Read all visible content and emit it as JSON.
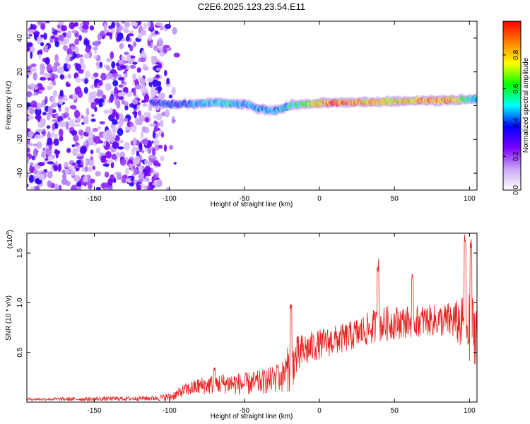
{
  "page": {
    "title": "C2E6.2025.123.23.54.E11"
  },
  "chart_data": [
    {
      "type": "heatmap",
      "title": "C2E6.2025.123.23.54.E11",
      "xlabel": "Height of straight line (km)",
      "ylabel": "Frequency (Hz)",
      "xlim": [
        -195,
        105
      ],
      "ylim": [
        -50,
        50
      ],
      "x_ticks": [
        -150,
        -100,
        -50,
        0,
        50,
        100
      ],
      "y_ticks": [
        -40,
        -20,
        0,
        20,
        40
      ],
      "colorbar": {
        "label": "Normalized spectral amplitude",
        "range": [
          0,
          1
        ],
        "ticks": [
          0.0,
          0.2,
          0.4,
          0.6,
          0.8
        ],
        "stops": [
          "#ffffff",
          "#c9a6f4",
          "#7a00ff",
          "#0000ff",
          "#00ffff",
          "#00ff00",
          "#ffff00",
          "#ff8000",
          "#ff0000"
        ]
      },
      "ridge": {
        "x": [
          -112,
          -100,
          -90,
          -80,
          -70,
          -60,
          -50,
          -40,
          -30,
          -20,
          -10,
          0,
          10,
          20,
          30,
          40,
          50,
          60,
          70,
          80,
          90,
          100,
          105
        ],
        "frequency": [
          2,
          1,
          1,
          1,
          2,
          1,
          1,
          -2,
          -3,
          0,
          1,
          1.5,
          2,
          2,
          2,
          2,
          2.5,
          3,
          3,
          3,
          3.5,
          4,
          4
        ],
        "amplitude": [
          0.35,
          0.4,
          0.4,
          0.45,
          0.5,
          0.5,
          0.45,
          0.45,
          0.45,
          0.5,
          0.6,
          0.75,
          0.9,
          0.9,
          0.8,
          0.75,
          0.75,
          0.8,
          0.85,
          0.85,
          0.8,
          0.55,
          0.5
        ]
      },
      "noise_region_end": -105
    },
    {
      "type": "line",
      "xlabel": "Height of straight line (km)",
      "ylabel": "SNR (10 * v/v)",
      "y_multiplier": "(x10",
      "y_multiplier_exp": "4",
      "y_multiplier_close": ")",
      "xlim": [
        -195,
        105
      ],
      "ylim": [
        0,
        17000
      ],
      "x_ticks": [
        -150,
        -100,
        -50,
        0,
        50,
        100
      ],
      "y_ticks": [
        0.5,
        1.0,
        1.5
      ],
      "y_tick_scale": 10000,
      "color": "#e8201e",
      "trend": {
        "x": [
          -195,
          -160,
          -130,
          -110,
          -100,
          -95,
          -90,
          -80,
          -70,
          -60,
          -50,
          -40,
          -30,
          -25,
          -20,
          -15,
          -10,
          0,
          10,
          20,
          30,
          40,
          50,
          60,
          70,
          80,
          90,
          95,
          100,
          105
        ],
        "y": [
          300,
          300,
          350,
          400,
          500,
          800,
          1200,
          1600,
          1800,
          1900,
          1800,
          2000,
          2300,
          2500,
          3500,
          4500,
          5200,
          5800,
          6200,
          6600,
          7200,
          7800,
          8000,
          8100,
          8200,
          8200,
          8200,
          7800,
          7500,
          7200
        ]
      },
      "noise_amplitude": {
        "x": [
          -195,
          -110,
          -95,
          -80,
          -60,
          -40,
          -25,
          -20,
          -10,
          0,
          20,
          40,
          60,
          80,
          90,
          100,
          105
        ],
        "y": [
          150,
          250,
          500,
          900,
          1100,
          1200,
          1500,
          2500,
          1800,
          1500,
          1500,
          1800,
          1600,
          1600,
          2000,
          3500,
          3500
        ]
      },
      "peaks": [
        {
          "x": -70,
          "y": 3500
        },
        {
          "x": -28,
          "y": 3800
        },
        {
          "x": -19,
          "y": 10000
        },
        {
          "x": 39,
          "y": 14500
        },
        {
          "x": 62,
          "y": 13000
        },
        {
          "x": 97,
          "y": 17000
        },
        {
          "x": 101,
          "y": 16500
        }
      ]
    }
  ]
}
